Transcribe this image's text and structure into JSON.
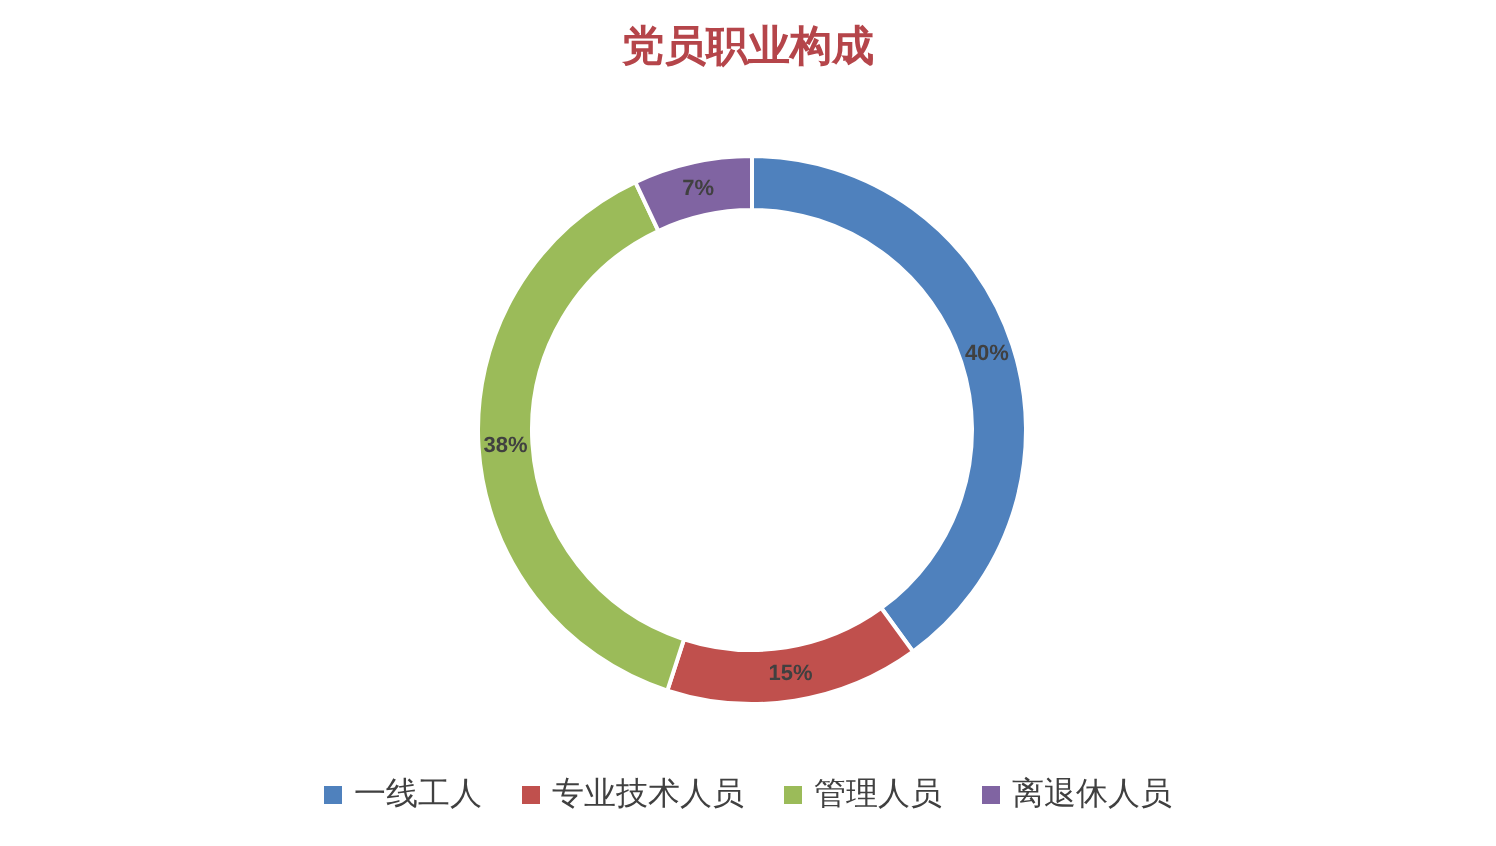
{
  "chart_data": {
    "type": "donut",
    "title": "党员职业构成",
    "categories": [
      "一线工人",
      "专业技术人员",
      "管理人员",
      "离退休人员"
    ],
    "values": [
      40,
      15,
      38,
      7
    ],
    "colors": [
      "#4f81bd",
      "#c0504d",
      "#9bbb59",
      "#8064a2"
    ],
    "value_labels": [
      "40%",
      "15%",
      "38%",
      "7%"
    ],
    "legend": "bottom"
  }
}
